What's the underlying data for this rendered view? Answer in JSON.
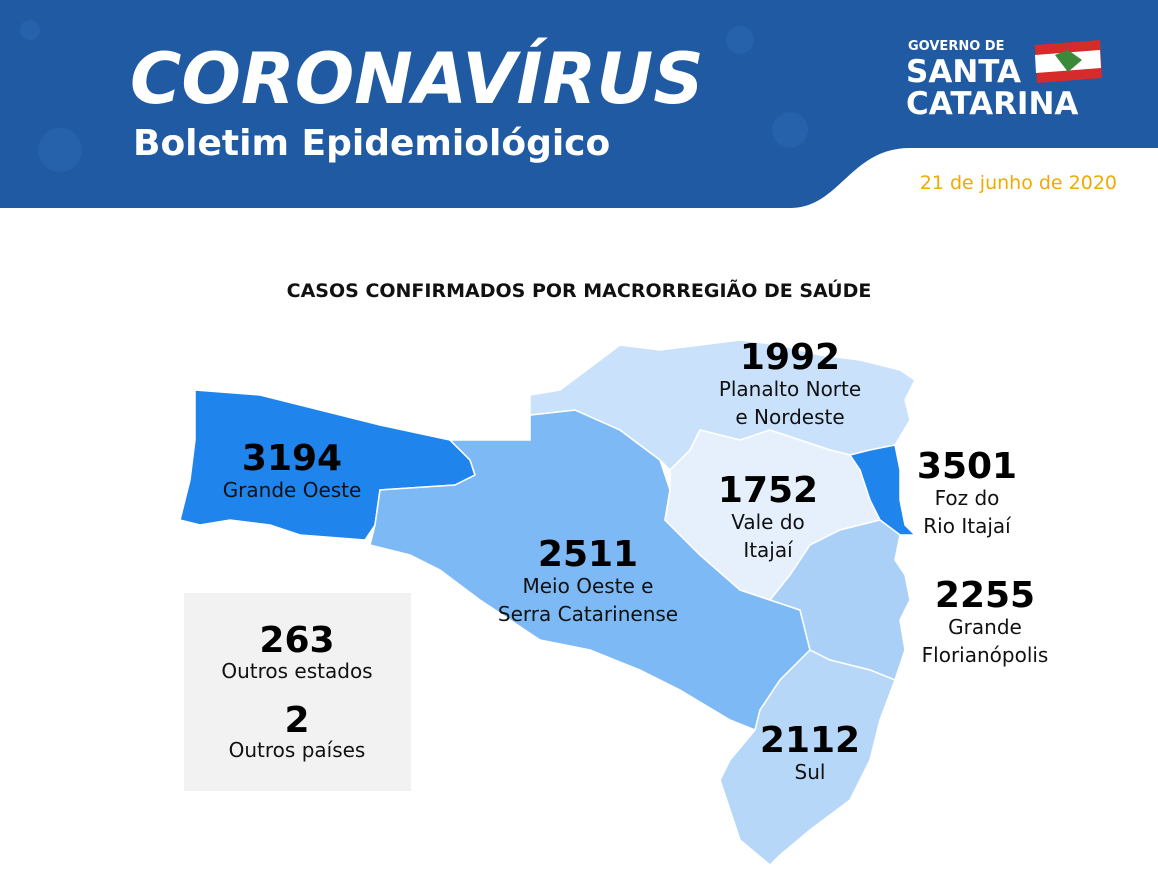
{
  "header": {
    "title": "CORONAVÍRUS",
    "subtitle": "Boletim Epidemiológico",
    "logo_line1": "GOVERNO DE",
    "logo_line2": "SANTA",
    "logo_line3": "CATARINA",
    "date": "21 de junho de 2020"
  },
  "map": {
    "title": "CASOS CONFIRMADOS POR MACRORREGIÃO DE SAÚDE",
    "regions": [
      {
        "value": 3194,
        "label_lines": [
          "Grande Oeste"
        ],
        "color": "#1f84ec"
      },
      {
        "value": 2511,
        "label_lines": [
          "Meio Oeste e",
          "Serra Catarinense"
        ],
        "color": "#7db9f4"
      },
      {
        "value": 1992,
        "label_lines": [
          "Planalto Norte",
          "e Nordeste"
        ],
        "color": "#c9e1fa"
      },
      {
        "value": 1752,
        "label_lines": [
          "Vale do",
          "Itajaí"
        ],
        "color": "#e6f0fc"
      },
      {
        "value": 3501,
        "label_lines": [
          "Foz do",
          "Rio Itajaí"
        ],
        "color": "#1f84ec"
      },
      {
        "value": 2255,
        "label_lines": [
          "Grande",
          "Florianópolis"
        ],
        "color": "#abd0f7"
      },
      {
        "value": 2112,
        "label_lines": [
          "Sul"
        ],
        "color": "#b7d7f8"
      }
    ]
  },
  "others": [
    {
      "value": 263,
      "label": "Outros estados"
    },
    {
      "value": 2,
      "label": "Outros países"
    }
  ]
}
